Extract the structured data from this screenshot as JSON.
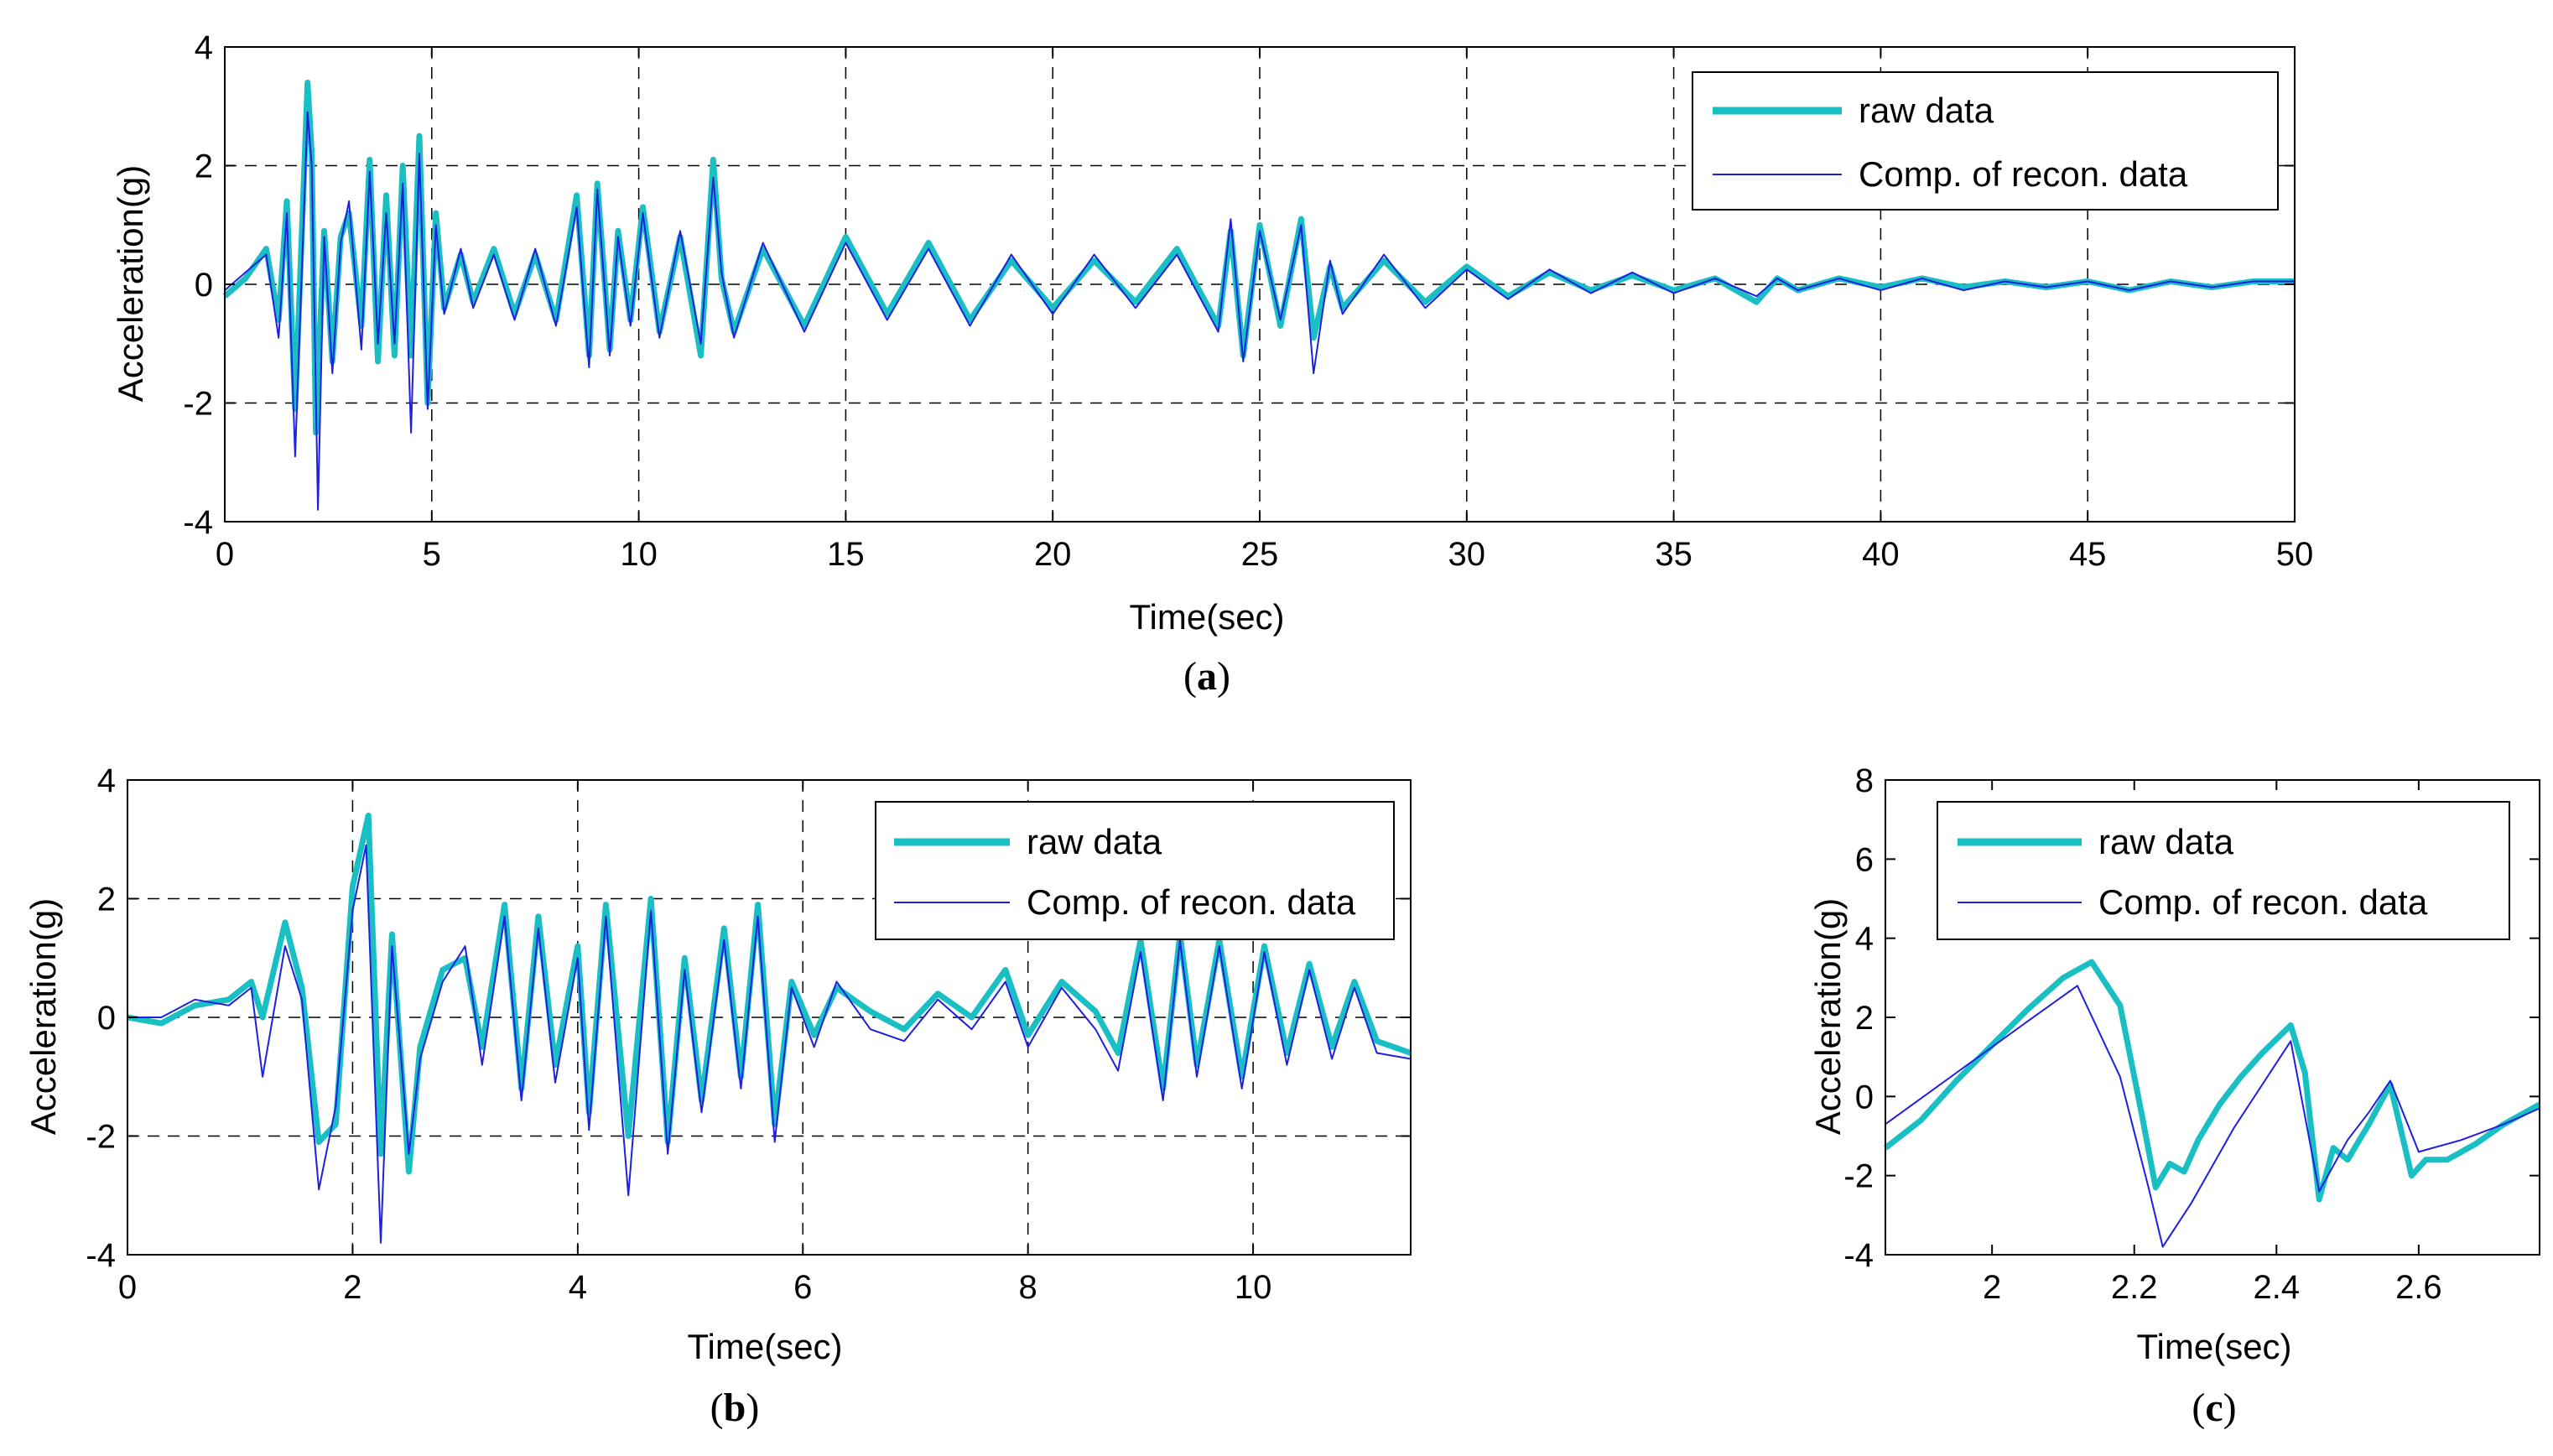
{
  "figure": {
    "captions": {
      "a": "a",
      "b": "b",
      "c": "c"
    }
  },
  "colors": {
    "raw": "#1ABFC4",
    "recon": "#1F1FE0",
    "grid": "#000000"
  },
  "chart_data": [
    {
      "id": "a",
      "type": "line",
      "title": "",
      "xlabel": "Time(sec)",
      "ylabel": "Acceleration(g)",
      "xlim": [
        0,
        50
      ],
      "ylim": [
        -4,
        4
      ],
      "xticks": [
        0,
        5,
        10,
        15,
        20,
        25,
        30,
        35,
        40,
        45,
        50
      ],
      "yticks": [
        -4,
        -2,
        0,
        2,
        4
      ],
      "xtick_labels": [
        "0",
        "5",
        "10",
        "15",
        "20",
        "25",
        "30",
        "35",
        "40",
        "45",
        "50"
      ],
      "ytick_labels": [
        "-4",
        "-2",
        "0",
        "2",
        "4"
      ],
      "grid": true,
      "legend_position": "top-right",
      "series": [
        {
          "name": "raw data",
          "style": "thick",
          "x": [
            0,
            0.5,
            1.0,
            1.3,
            1.5,
            1.7,
            2.0,
            2.1,
            2.2,
            2.4,
            2.6,
            2.8,
            3.0,
            3.3,
            3.5,
            3.7,
            3.9,
            4.1,
            4.3,
            4.5,
            4.7,
            4.9,
            5.1,
            5.3,
            5.7,
            6.0,
            6.5,
            7.0,
            7.5,
            8.0,
            8.5,
            8.8,
            9.0,
            9.3,
            9.5,
            9.8,
            10.1,
            10.5,
            11.0,
            11.5,
            11.8,
            12.0,
            12.3,
            13.0,
            14.0,
            15.0,
            16.0,
            17.0,
            18.0,
            19.0,
            20.0,
            21.0,
            22.0,
            23.0,
            24.0,
            24.3,
            24.6,
            25.0,
            25.5,
            26.0,
            26.3,
            26.7,
            27.0,
            28.0,
            29.0,
            30.0,
            31.0,
            32.0,
            33.0,
            34.0,
            35.0,
            36.0,
            37.0,
            37.5,
            38.0,
            39.0,
            40.0,
            41.0,
            42.0,
            43.0,
            44.0,
            45.0,
            46.0,
            47.0,
            48.0,
            49.0,
            50.0
          ],
          "y": [
            -0.2,
            0.1,
            0.6,
            -0.6,
            1.4,
            -2.1,
            3.4,
            2.2,
            -2.5,
            0.9,
            -1.3,
            0.8,
            1.2,
            -0.7,
            2.1,
            -1.3,
            1.5,
            -1.2,
            2.0,
            -1.2,
            2.5,
            -2.0,
            1.2,
            -0.4,
            0.5,
            -0.3,
            0.6,
            -0.5,
            0.5,
            -0.6,
            1.5,
            -1.2,
            1.7,
            -1.1,
            0.9,
            -0.6,
            1.3,
            -0.8,
            0.8,
            -1.2,
            2.1,
            0.1,
            -0.8,
            0.6,
            -0.7,
            0.8,
            -0.5,
            0.7,
            -0.6,
            0.4,
            -0.4,
            0.4,
            -0.3,
            0.6,
            -0.7,
            0.9,
            -1.2,
            1.0,
            -0.7,
            1.1,
            -0.9,
            0.3,
            -0.4,
            0.4,
            -0.3,
            0.3,
            -0.2,
            0.2,
            -0.1,
            0.15,
            -0.1,
            0.1,
            -0.3,
            0.1,
            -0.1,
            0.1,
            -0.05,
            0.1,
            -0.05,
            0.05,
            -0.05,
            0.05,
            -0.1,
            0.05,
            -0.05,
            0.05,
            0.05
          ]
        },
        {
          "name": "Comp. of recon. data",
          "style": "thin",
          "x": [
            0,
            0.5,
            1.0,
            1.3,
            1.5,
            1.7,
            2.0,
            2.1,
            2.25,
            2.4,
            2.6,
            2.8,
            3.0,
            3.3,
            3.5,
            3.7,
            3.9,
            4.1,
            4.3,
            4.5,
            4.7,
            4.9,
            5.1,
            5.3,
            5.7,
            6.0,
            6.5,
            7.0,
            7.5,
            8.0,
            8.5,
            8.8,
            9.0,
            9.3,
            9.5,
            9.8,
            10.1,
            10.5,
            11.0,
            11.5,
            11.8,
            12.0,
            12.3,
            13.0,
            14.0,
            15.0,
            16.0,
            17.0,
            18.0,
            19.0,
            20.0,
            21.0,
            22.0,
            23.0,
            24.0,
            24.3,
            24.6,
            25.0,
            25.5,
            26.0,
            26.3,
            26.7,
            27.0,
            28.0,
            29.0,
            30.0,
            31.0,
            32.0,
            33.0,
            34.0,
            35.0,
            36.0,
            37.0,
            37.5,
            38.0,
            39.0,
            40.0,
            41.0,
            42.0,
            43.0,
            44.0,
            45.0,
            46.0,
            47.0,
            48.0,
            49.0,
            50.0
          ],
          "y": [
            -0.1,
            0.2,
            0.5,
            -0.9,
            1.2,
            -2.9,
            2.9,
            2.0,
            -3.8,
            0.8,
            -1.5,
            0.7,
            1.4,
            -1.1,
            1.9,
            -1.0,
            1.2,
            -1.0,
            1.7,
            -2.5,
            2.2,
            -2.1,
            1.0,
            -0.5,
            0.6,
            -0.4,
            0.5,
            -0.6,
            0.6,
            -0.7,
            1.3,
            -1.4,
            1.6,
            -1.2,
            0.8,
            -0.7,
            1.2,
            -0.9,
            0.9,
            -1.0,
            1.8,
            0.2,
            -0.9,
            0.7,
            -0.8,
            0.7,
            -0.6,
            0.6,
            -0.7,
            0.5,
            -0.5,
            0.5,
            -0.4,
            0.5,
            -0.8,
            1.1,
            -1.3,
            0.9,
            -0.6,
            1.0,
            -1.5,
            0.4,
            -0.5,
            0.5,
            -0.4,
            0.25,
            -0.25,
            0.25,
            -0.15,
            0.2,
            -0.15,
            0.1,
            -0.2,
            0.1,
            -0.1,
            0.1,
            -0.1,
            0.1,
            -0.1,
            0.05,
            -0.05,
            0.05,
            -0.1,
            0.05,
            -0.05,
            0.05,
            0.05
          ]
        }
      ]
    },
    {
      "id": "b",
      "type": "line",
      "title": "",
      "xlabel": "Time(sec)",
      "ylabel": "Acceleration(g)",
      "xlim": [
        0,
        11.4
      ],
      "ylim": [
        -4,
        4
      ],
      "xticks": [
        0,
        2,
        4,
        6,
        8,
        10
      ],
      "yticks": [
        -4,
        -2,
        0,
        2,
        4
      ],
      "xtick_labels": [
        "0",
        "2",
        "4",
        "6",
        "8",
        "10"
      ],
      "ytick_labels": [
        "-4",
        "-2",
        "0",
        "2",
        "4"
      ],
      "grid": true,
      "legend_position": "top-right",
      "series": [
        {
          "name": "raw data",
          "style": "thick",
          "x": [
            0,
            0.3,
            0.6,
            0.9,
            1.1,
            1.2,
            1.4,
            1.55,
            1.7,
            1.85,
            2.0,
            2.14,
            2.25,
            2.35,
            2.5,
            2.6,
            2.8,
            3.0,
            3.15,
            3.35,
            3.5,
            3.65,
            3.8,
            4.0,
            4.1,
            4.25,
            4.45,
            4.65,
            4.8,
            4.95,
            5.1,
            5.3,
            5.45,
            5.6,
            5.75,
            5.9,
            6.1,
            6.3,
            6.6,
            6.9,
            7.2,
            7.5,
            7.8,
            8.0,
            8.3,
            8.6,
            8.8,
            9.0,
            9.2,
            9.35,
            9.5,
            9.7,
            9.9,
            10.1,
            10.3,
            10.5,
            10.7,
            10.9,
            11.1,
            11.4
          ],
          "y": [
            0,
            -0.1,
            0.2,
            0.3,
            0.6,
            0.0,
            1.6,
            0.5,
            -2.1,
            -1.8,
            2.2,
            3.4,
            -2.3,
            1.4,
            -2.6,
            -0.5,
            0.8,
            1.0,
            -0.5,
            1.9,
            -1.2,
            1.7,
            -0.8,
            1.2,
            -1.6,
            1.9,
            -2.0,
            2.0,
            -2.1,
            1.0,
            -1.4,
            1.5,
            -1.0,
            1.9,
            -1.8,
            0.6,
            -0.3,
            0.5,
            0.1,
            -0.2,
            0.4,
            0.0,
            0.8,
            -0.3,
            0.6,
            0.1,
            -0.6,
            1.3,
            -1.2,
            1.4,
            -0.8,
            1.3,
            -1.0,
            1.2,
            -0.6,
            0.9,
            -0.5,
            0.6,
            -0.4,
            -0.6
          ]
        },
        {
          "name": "Comp. of recon. data",
          "style": "thin",
          "x": [
            0,
            0.3,
            0.6,
            0.9,
            1.1,
            1.2,
            1.4,
            1.55,
            1.7,
            1.85,
            2.0,
            2.12,
            2.25,
            2.35,
            2.5,
            2.6,
            2.8,
            3.0,
            3.15,
            3.35,
            3.5,
            3.65,
            3.8,
            4.0,
            4.1,
            4.25,
            4.45,
            4.65,
            4.8,
            4.95,
            5.1,
            5.3,
            5.45,
            5.6,
            5.75,
            5.9,
            6.1,
            6.3,
            6.6,
            6.9,
            7.2,
            7.5,
            7.8,
            8.0,
            8.3,
            8.6,
            8.8,
            9.0,
            9.2,
            9.35,
            9.5,
            9.7,
            9.9,
            10.1,
            10.3,
            10.5,
            10.7,
            10.9,
            11.1,
            11.4
          ],
          "y": [
            0,
            0.0,
            0.3,
            0.2,
            0.5,
            -1.0,
            1.2,
            0.3,
            -2.9,
            -1.5,
            1.8,
            2.9,
            -3.8,
            1.2,
            -2.3,
            -0.7,
            0.6,
            1.2,
            -0.8,
            1.7,
            -1.4,
            1.5,
            -1.1,
            1.0,
            -1.9,
            1.7,
            -3.0,
            1.8,
            -2.3,
            0.8,
            -1.6,
            1.3,
            -1.2,
            1.7,
            -2.1,
            0.5,
            -0.5,
            0.6,
            -0.2,
            -0.4,
            0.3,
            -0.2,
            0.6,
            -0.5,
            0.5,
            -0.2,
            -0.9,
            1.1,
            -1.4,
            1.3,
            -1.0,
            1.2,
            -1.2,
            1.1,
            -0.8,
            0.8,
            -0.7,
            0.5,
            -0.6,
            -0.7
          ]
        }
      ]
    },
    {
      "id": "c",
      "type": "line",
      "title": "",
      "xlabel": "Time(sec)",
      "ylabel": "Acceleration(g)",
      "xlim": [
        1.85,
        2.77
      ],
      "ylim": [
        -4,
        8
      ],
      "xticks": [
        2.0,
        2.2,
        2.4,
        2.6
      ],
      "yticks": [
        -4,
        -2,
        0,
        2,
        4,
        6,
        8
      ],
      "xtick_labels": [
        "2",
        "2.2",
        "2.4",
        "2.6"
      ],
      "ytick_labels": [
        "-4",
        "-2",
        "0",
        "2",
        "4",
        "6",
        "8"
      ],
      "grid": false,
      "legend_position": "top-left",
      "series": [
        {
          "name": "raw data",
          "style": "thick",
          "x": [
            1.85,
            1.9,
            1.95,
            2.0,
            2.05,
            2.1,
            2.14,
            2.18,
            2.21,
            2.23,
            2.25,
            2.27,
            2.29,
            2.32,
            2.35,
            2.38,
            2.42,
            2.44,
            2.46,
            2.48,
            2.5,
            2.53,
            2.56,
            2.59,
            2.61,
            2.64,
            2.68,
            2.72,
            2.77
          ],
          "y": [
            -1.3,
            -0.6,
            0.4,
            1.3,
            2.2,
            3.0,
            3.4,
            2.3,
            -0.4,
            -2.3,
            -1.7,
            -1.9,
            -1.1,
            -0.2,
            0.5,
            1.1,
            1.8,
            0.6,
            -2.6,
            -1.3,
            -1.6,
            -0.7,
            0.3,
            -2.0,
            -1.6,
            -1.6,
            -1.2,
            -0.7,
            -0.2
          ]
        },
        {
          "name": "Comp. of recon. data",
          "style": "thin",
          "x": [
            1.85,
            1.95,
            2.05,
            2.12,
            2.18,
            2.22,
            2.24,
            2.28,
            2.34,
            2.42,
            2.46,
            2.5,
            2.53,
            2.56,
            2.6,
            2.66,
            2.72,
            2.77
          ],
          "y": [
            -0.7,
            0.6,
            1.9,
            2.8,
            0.5,
            -2.3,
            -3.8,
            -2.7,
            -0.8,
            1.4,
            -2.4,
            -1.1,
            -0.4,
            0.4,
            -1.4,
            -1.1,
            -0.7,
            -0.3
          ]
        }
      ]
    }
  ]
}
